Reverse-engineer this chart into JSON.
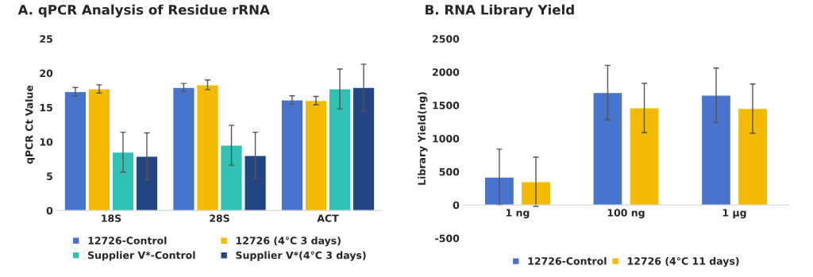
{
  "chart_data": [
    {
      "type": "bar",
      "title": "A. qPCR Analysis of Residue rRNA",
      "ylabel": "qPCR Ct Value",
      "categories": [
        "18S",
        "28S",
        "ACT"
      ],
      "ylim": [
        0,
        25
      ],
      "yticks": [
        0,
        5,
        10,
        15,
        20,
        25
      ],
      "grid": false,
      "legend": "bottom",
      "series": [
        {
          "name": "12726-Control",
          "color": "#4874cb",
          "values": [
            17.3,
            17.9,
            16.1
          ],
          "errors": [
            0.6,
            0.6,
            0.6
          ]
        },
        {
          "name": "12726 (4°C 3 days)",
          "color": "#f2ba02",
          "values": [
            17.7,
            18.3,
            16.0
          ],
          "errors": [
            0.6,
            0.7,
            0.6
          ]
        },
        {
          "name": "Supplier V*-Control",
          "color": "#30c0b4",
          "values": [
            8.5,
            9.5,
            17.7
          ],
          "errors": [
            2.9,
            2.9,
            2.9
          ]
        },
        {
          "name": "Supplier V*(4°C 3 days)",
          "color": "#254581",
          "values": [
            7.9,
            8.0,
            17.9
          ],
          "errors": [
            3.4,
            3.4,
            3.4
          ]
        }
      ]
    },
    {
      "type": "bar",
      "title": "B. RNA Library Yield",
      "ylabel": "Library Yield(ng)",
      "categories": [
        "1 ng",
        "100 ng",
        "1 µg"
      ],
      "ylim": [
        -500,
        2500
      ],
      "yticks": [
        -500,
        0,
        500,
        1000,
        1500,
        2000,
        2500
      ],
      "grid": false,
      "legend": "bottom",
      "series": [
        {
          "name": "12726-Control",
          "color": "#4874cb",
          "values": [
            420,
            1690,
            1650
          ],
          "errors": [
            420,
            410,
            410
          ]
        },
        {
          "name": "12726 (4°C 11 days)",
          "color": "#f2ba02",
          "values": [
            350,
            1460,
            1450
          ],
          "errors": [
            370,
            370,
            370
          ]
        }
      ]
    }
  ]
}
